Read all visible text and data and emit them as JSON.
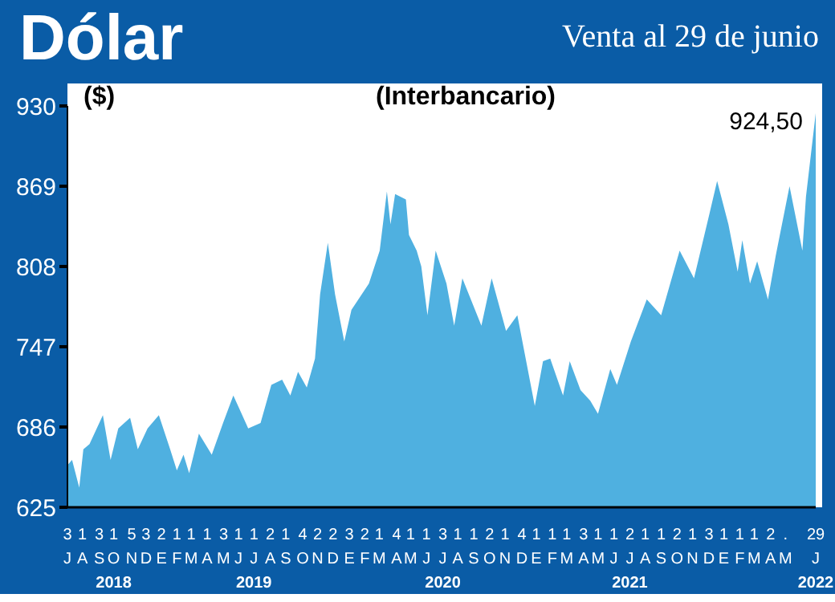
{
  "chart_data": {
    "type": "area",
    "title": "Dólar",
    "subtitle": "Venta al 29 de junio",
    "ylabel": "($)",
    "color": "#4fb0e0",
    "annotations": [
      "(Interbancario)",
      {
        "text": "924,50",
        "x": "2022-06-29",
        "y": 924.5
      }
    ],
    "ylim": [
      625,
      930
    ],
    "yticks": [
      625,
      686,
      747,
      808,
      869,
      930
    ],
    "xlim": [
      "2018-07-03",
      "2022-06-29"
    ],
    "xticks": [
      {
        "value": "2018-07-03",
        "label": "3\nJ"
      },
      {
        "value": "2018-08-01",
        "label": "1\nA"
      },
      {
        "value": "2018-09-03",
        "label": "3\nS"
      },
      {
        "value": "2018-10-01",
        "label": "1\nO\n2018"
      },
      {
        "value": "2018-11-05",
        "label": "5\nN"
      },
      {
        "value": "2018-12-03",
        "label": "3\nD"
      },
      {
        "value": "2019-01-02",
        "label": "2\nE"
      },
      {
        "value": "2019-02-01",
        "label": "1\nF"
      },
      {
        "value": "2019-03-01",
        "label": "1\nM"
      },
      {
        "value": "2019-04-01",
        "label": "1\nA"
      },
      {
        "value": "2019-05-03",
        "label": "3\nM"
      },
      {
        "value": "2019-06-01",
        "label": "1\nJ"
      },
      {
        "value": "2019-07-01",
        "label": "1\nJ\n2019"
      },
      {
        "value": "2019-08-02",
        "label": "2\nA"
      },
      {
        "value": "2019-09-01",
        "label": "1\nS"
      },
      {
        "value": "2019-10-04",
        "label": "4\nO"
      },
      {
        "value": "2019-11-02",
        "label": "2\nN"
      },
      {
        "value": "2019-12-02",
        "label": "2\nD"
      },
      {
        "value": "2020-01-03",
        "label": "3\nE"
      },
      {
        "value": "2020-02-02",
        "label": "2\nF"
      },
      {
        "value": "2020-03-01",
        "label": "1\nM"
      },
      {
        "value": "2020-04-04",
        "label": "4\nA"
      },
      {
        "value": "2020-05-01",
        "label": "1\nM"
      },
      {
        "value": "2020-06-01",
        "label": "1\nJ"
      },
      {
        "value": "2020-07-03",
        "label": "3\nJ\n2020"
      },
      {
        "value": "2020-08-01",
        "label": "1\nA"
      },
      {
        "value": "2020-09-01",
        "label": "1\nS"
      },
      {
        "value": "2020-10-02",
        "label": "2\nO"
      },
      {
        "value": "2020-11-01",
        "label": "1\nN"
      },
      {
        "value": "2020-12-04",
        "label": "4\nD"
      },
      {
        "value": "2021-01-01",
        "label": "1\nE"
      },
      {
        "value": "2021-02-01",
        "label": "1\nF"
      },
      {
        "value": "2021-03-01",
        "label": "1\nM"
      },
      {
        "value": "2021-04-03",
        "label": "3\nA"
      },
      {
        "value": "2021-05-01",
        "label": "1\nM"
      },
      {
        "value": "2021-06-01",
        "label": "1\nJ"
      },
      {
        "value": "2021-07-02",
        "label": "2\nJ\n2021"
      },
      {
        "value": "2021-08-01",
        "label": "1\nA"
      },
      {
        "value": "2021-09-01",
        "label": "1\nS"
      },
      {
        "value": "2021-10-02",
        "label": "2\nO"
      },
      {
        "value": "2021-11-01",
        "label": "1\nN"
      },
      {
        "value": "2021-12-03",
        "label": "3\nD"
      },
      {
        "value": "2022-01-01",
        "label": "1\nE"
      },
      {
        "value": "2022-02-01",
        "label": "1\nF"
      },
      {
        "value": "2022-03-01",
        "label": "1\nM"
      },
      {
        "value": "2022-04-02",
        "label": "2\nA"
      },
      {
        "value": "2022-05-01",
        "label": ".\nM"
      },
      {
        "value": "2022-06-29",
        "label": "29\nJ\n2022"
      }
    ],
    "x": [
      "2018-07-03",
      "2018-07-12",
      "2018-07-26",
      "2018-08-03",
      "2018-08-15",
      "2018-09-10",
      "2018-09-25",
      "2018-10-10",
      "2018-11-02",
      "2018-11-17",
      "2018-12-06",
      "2018-12-28",
      "2019-01-19",
      "2019-02-01",
      "2019-02-14",
      "2019-02-25",
      "2019-03-16",
      "2019-04-10",
      "2019-05-02",
      "2019-05-22",
      "2019-06-20",
      "2019-07-14",
      "2019-08-04",
      "2019-08-25",
      "2019-09-10",
      "2019-09-25",
      "2019-10-12",
      "2019-10-28",
      "2019-11-07",
      "2019-11-22",
      "2019-12-06",
      "2019-12-24",
      "2020-01-07",
      "2020-02-10",
      "2020-03-02",
      "2020-03-16",
      "2020-03-23",
      "2020-04-01",
      "2020-04-22",
      "2020-04-28",
      "2020-05-13",
      "2020-05-22",
      "2020-06-03",
      "2020-06-19",
      "2020-07-10",
      "2020-07-25",
      "2020-08-10",
      "2020-09-16",
      "2020-10-06",
      "2020-11-03",
      "2020-11-25",
      "2020-12-29",
      "2021-01-14",
      "2021-01-28",
      "2021-02-22",
      "2021-03-07",
      "2021-03-28",
      "2021-04-16",
      "2021-05-01",
      "2021-05-25",
      "2021-06-07",
      "2021-07-04",
      "2021-08-04",
      "2021-09-01",
      "2021-10-07",
      "2021-11-04",
      "2021-12-04",
      "2021-12-19",
      "2022-01-10",
      "2022-01-28",
      "2022-02-06",
      "2022-02-21",
      "2022-03-07",
      "2022-03-28",
      "2022-04-12",
      "2022-05-09",
      "2022-06-03",
      "2022-06-10",
      "2022-06-29"
    ],
    "values": [
      657,
      661,
      640,
      669,
      673,
      695,
      661,
      685,
      693,
      669,
      685,
      695,
      669,
      653,
      665,
      651,
      681,
      665,
      689,
      710,
      685,
      689,
      718,
      722,
      710,
      728,
      716,
      738,
      787,
      826,
      787,
      751,
      775,
      795,
      820,
      865,
      840,
      863,
      859,
      832,
      820,
      808,
      771,
      820,
      795,
      763,
      799,
      763,
      799,
      759,
      771,
      702,
      736,
      738,
      710,
      736,
      714,
      706,
      696,
      730,
      718,
      751,
      783,
      771,
      820,
      799,
      848,
      873,
      840,
      804,
      828,
      795,
      812,
      783,
      816,
      869,
      820,
      861,
      924.5
    ]
  }
}
